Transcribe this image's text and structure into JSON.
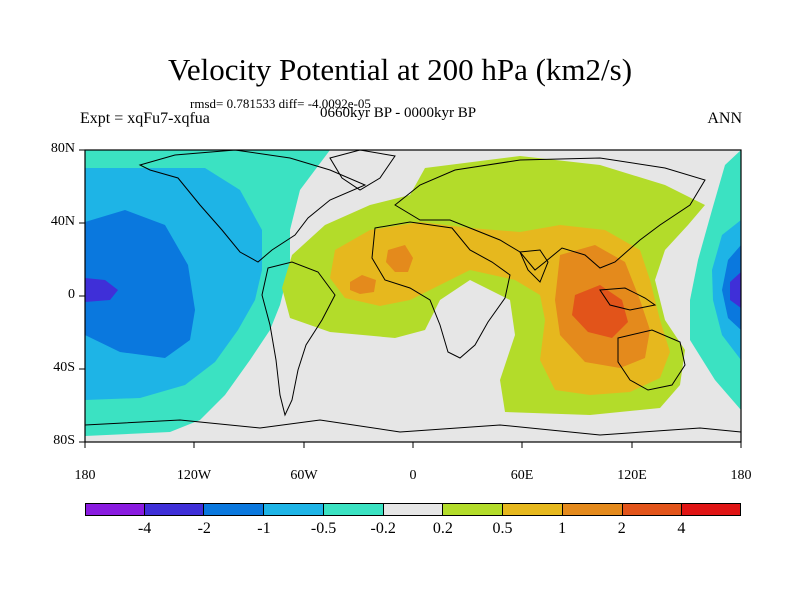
{
  "title": "Velocity Potential at 200 hPa (km2/s)",
  "stats": "rmsd= 0.781533 diff= -4.0092e-05",
  "experiment": "Expt = xqFu7-xqfua",
  "period": "0660kyr BP - 0000kyr BP",
  "season": "ANN",
  "y_ticks": [
    "80N",
    "40N",
    "0",
    "40S",
    "80S"
  ],
  "x_ticks": [
    "180",
    "120W",
    "60W",
    "0",
    "60E",
    "120E",
    "180"
  ],
  "colorbar": {
    "colors": [
      "#8a1be0",
      "#3f2fd8",
      "#0a78de",
      "#1eb4e6",
      "#3be2c2",
      "#e6e6e6",
      "#b3dc2a",
      "#e6b81e",
      "#e48a1c",
      "#e2541a",
      "#e01414"
    ],
    "labels": [
      "-4",
      "-2",
      "-1",
      "-0.5",
      "-0.2",
      "0.2",
      "0.5",
      "1",
      "2",
      "4"
    ]
  },
  "map_colors": {
    "background": "#e6e6e6",
    "teal": "#3be2c2",
    "cyan": "#1eb4e6",
    "blue": "#0a78de",
    "darkblue": "#3f2fd8",
    "lime": "#b3dc2a",
    "gold": "#e6b81e",
    "orange": "#e48a1c",
    "red": "#e2541a"
  }
}
